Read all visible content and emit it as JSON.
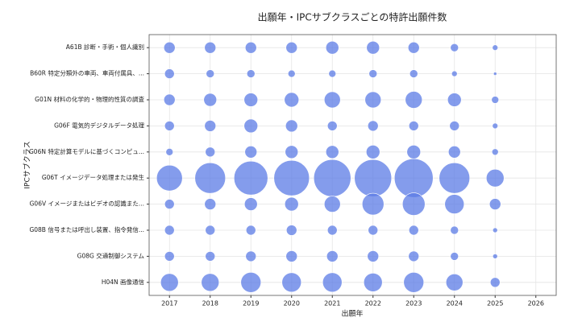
{
  "chart_data": {
    "type": "bubble",
    "title": "出願年・IPCサブクラスごとの特許出願件数",
    "xlabel": "出願年",
    "ylabel": "IPCサブクラス",
    "categories": [
      "A61B 診断・手術・個人識別",
      "B60R 特定分類外の車両、車両付属具、...",
      "G01N 材料の化学的・物理的性質の調査",
      "G06F 電気的デジタルデータ処理",
      "G06N 特定計算モデルに基づくコンピュ...",
      "G06T イメージデータ処理または発生",
      "G06V イメージまたはビデオの認識また...",
      "G08B 信号または呼出し装置、指令発信...",
      "G08G 交通制御システム",
      "H04N 画像通信"
    ],
    "x": [
      2017,
      2018,
      2019,
      2020,
      2021,
      2022,
      2023,
      2024,
      2025
    ],
    "sizes": [
      [
        49,
        49,
        49,
        49,
        64,
        64,
        49,
        25,
        12
      ],
      [
        36,
        25,
        25,
        20,
        20,
        25,
        25,
        12,
        4
      ],
      [
        49,
        64,
        72,
        81,
        100,
        100,
        110,
        72,
        20
      ],
      [
        36,
        49,
        72,
        56,
        36,
        42,
        36,
        36,
        12
      ],
      [
        20,
        36,
        56,
        64,
        64,
        72,
        72,
        56,
        16
      ],
      [
        256,
        361,
        441,
        484,
        529,
        529,
        576,
        361,
        121
      ],
      [
        36,
        49,
        64,
        72,
        100,
        182,
        196,
        144,
        49
      ],
      [
        36,
        36,
        36,
        42,
        36,
        36,
        36,
        25,
        9
      ],
      [
        36,
        36,
        42,
        49,
        49,
        49,
        42,
        25,
        9
      ],
      [
        121,
        121,
        156,
        144,
        144,
        132,
        156,
        110,
        36
      ]
    ],
    "color": "#5b7be6",
    "xlim": [
      2016.5,
      2026.5
    ],
    "xticks": [
      2017,
      2018,
      2019,
      2020,
      2021,
      2022,
      2023,
      2024,
      2025,
      2026
    ],
    "grid": true
  }
}
